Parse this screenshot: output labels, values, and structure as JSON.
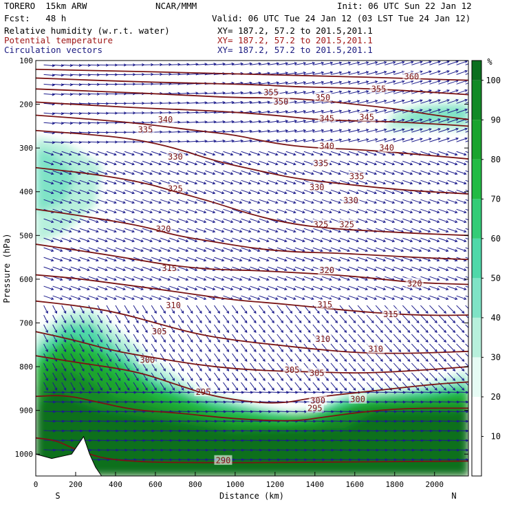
{
  "header": {
    "model_name": "TORERO  15km ARW",
    "org": "NCAR/MMM",
    "init": "Init: 06 UTC Sun 22 Jan 12",
    "fcst": "Fcst:   48 h",
    "valid": "Valid: 06 UTC Tue 24 Jan 12 (03 LST Tue 24 Jan 12)",
    "fields": [
      {
        "name": "Relative humidity (w.r.t. water)",
        "xy": "XY= 187.2, 57.2 to 201.5,201.1"
      },
      {
        "name": "Potential temperature",
        "xy": "XY= 187.2, 57.2 to 201.5,201.1"
      },
      {
        "name": "Circulation vectors",
        "xy": "XY= 187.2, 57.2 to 201.5,201.1"
      }
    ]
  },
  "colors": {
    "theta": "#7a1414",
    "vectors": "#1c1c8c",
    "rh_scale": [
      "#ffffff",
      "#ffffff",
      "#e6fbf4",
      "#b7f0dc",
      "#7fe3c6",
      "#4fd8a9",
      "#33cc77",
      "#22bb44",
      "#1aa42e",
      "#128a26",
      "#0b6f1f"
    ]
  },
  "chart_data": {
    "type": "cross-section",
    "xlabel": "Distance (km)",
    "ylabel": "Pressure (hPa)",
    "xlim": [
      0,
      2170
    ],
    "ylim": [
      1050,
      100
    ],
    "x_ticks": [
      0,
      200,
      400,
      600,
      800,
      1000,
      1200,
      1400,
      1600,
      1800,
      2000
    ],
    "y_ticks": [
      100,
      200,
      300,
      400,
      500,
      600,
      700,
      800,
      900,
      1000
    ],
    "left_end": "S",
    "right_end": "N",
    "colorbar": {
      "unit": "%",
      "ticks": [
        10,
        20,
        30,
        40,
        50,
        60,
        70,
        80,
        90,
        100
      ],
      "bounds": [
        0,
        105
      ]
    },
    "theta_contours": [
      {
        "value": 290,
        "points": [
          [
            0,
            963
          ],
          [
            100,
            968
          ],
          [
            200,
            990
          ],
          [
            400,
            1018
          ],
          [
            1000,
            1020
          ],
          [
            1500,
            1018
          ],
          [
            2170,
            1016
          ]
        ],
        "labels": [
          [
            940,
            1015
          ]
        ]
      },
      {
        "value": 295,
        "points": [
          [
            0,
            868
          ],
          [
            150,
            865
          ],
          [
            300,
            880
          ],
          [
            500,
            900
          ],
          [
            700,
            905
          ],
          [
            1000,
            920
          ],
          [
            1300,
            925
          ],
          [
            1450,
            915
          ],
          [
            1700,
            900
          ],
          [
            1900,
            895
          ],
          [
            2170,
            895
          ]
        ],
        "labels": [
          [
            840,
            858
          ],
          [
            1400,
            895
          ]
        ]
      },
      {
        "value": 300,
        "points": [
          [
            0,
            775
          ],
          [
            200,
            790
          ],
          [
            500,
            810
          ],
          [
            700,
            840
          ],
          [
            900,
            870
          ],
          [
            1200,
            887
          ],
          [
            1400,
            870
          ],
          [
            1600,
            860
          ],
          [
            1800,
            850
          ],
          [
            2000,
            840
          ],
          [
            2170,
            835
          ]
        ],
        "labels": [
          [
            560,
            785
          ],
          [
            1415,
            878
          ],
          [
            1615,
            875
          ]
        ]
      },
      {
        "value": 305,
        "points": [
          [
            0,
            720
          ],
          [
            200,
            740
          ],
          [
            400,
            765
          ],
          [
            600,
            780
          ],
          [
            800,
            795
          ],
          [
            1000,
            805
          ],
          [
            1200,
            810
          ],
          [
            1400,
            812
          ],
          [
            1600,
            815
          ],
          [
            1800,
            812
          ],
          [
            2000,
            806
          ],
          [
            2170,
            800
          ]
        ],
        "labels": [
          [
            620,
            720
          ],
          [
            1285,
            808
          ],
          [
            1410,
            815
          ]
        ]
      },
      {
        "value": 310,
        "points": [
          [
            0,
            650
          ],
          [
            200,
            660
          ],
          [
            400,
            675
          ],
          [
            600,
            700
          ],
          [
            800,
            725
          ],
          [
            1000,
            740
          ],
          [
            1200,
            750
          ],
          [
            1400,
            760
          ],
          [
            1600,
            768
          ],
          [
            1800,
            770
          ],
          [
            2000,
            768
          ],
          [
            2170,
            765
          ]
        ],
        "labels": [
          [
            690,
            660
          ],
          [
            1440,
            737
          ],
          [
            1705,
            760
          ]
        ]
      },
      {
        "value": 315,
        "points": [
          [
            0,
            590
          ],
          [
            200,
            598
          ],
          [
            400,
            610
          ],
          [
            600,
            622
          ],
          [
            800,
            635
          ],
          [
            1000,
            648
          ],
          [
            1200,
            655
          ],
          [
            1400,
            664
          ],
          [
            1600,
            673
          ],
          [
            1800,
            680
          ],
          [
            2000,
            683
          ],
          [
            2170,
            682
          ]
        ],
        "labels": [
          [
            670,
            575
          ],
          [
            1450,
            658
          ],
          [
            1780,
            680
          ]
        ]
      },
      {
        "value": 320,
        "points": [
          [
            0,
            520
          ],
          [
            300,
            540
          ],
          [
            500,
            555
          ],
          [
            700,
            570
          ],
          [
            900,
            578
          ],
          [
            1100,
            580
          ],
          [
            1300,
            585
          ],
          [
            1500,
            590
          ],
          [
            1700,
            598
          ],
          [
            1900,
            608
          ],
          [
            2170,
            612
          ]
        ],
        "labels": [
          [
            640,
            485
          ],
          [
            1460,
            580
          ],
          [
            1900,
            610
          ]
        ]
      },
      {
        "value": 325,
        "points": [
          [
            0,
            440
          ],
          [
            300,
            460
          ],
          [
            550,
            480
          ],
          [
            700,
            500
          ],
          [
            900,
            515
          ],
          [
            1100,
            530
          ],
          [
            1300,
            538
          ],
          [
            1500,
            540
          ],
          [
            1700,
            545
          ],
          [
            1900,
            550
          ],
          [
            2170,
            555
          ]
        ],
        "labels": [
          [
            700,
            393
          ],
          [
            1430,
            475
          ],
          [
            1560,
            475
          ]
        ]
      },
      {
        "value": 330,
        "points": [
          [
            0,
            345
          ],
          [
            300,
            360
          ],
          [
            550,
            380
          ],
          [
            700,
            400
          ],
          [
            900,
            425
          ],
          [
            1100,
            455
          ],
          [
            1300,
            475
          ],
          [
            1500,
            485
          ],
          [
            1700,
            490
          ],
          [
            1900,
            495
          ],
          [
            2170,
            500
          ]
        ],
        "labels": [
          [
            700,
            320
          ],
          [
            1410,
            390
          ],
          [
            1580,
            420
          ]
        ]
      },
      {
        "value": 335,
        "points": [
          [
            0,
            260
          ],
          [
            300,
            270
          ],
          [
            500,
            280
          ],
          [
            700,
            300
          ],
          [
            900,
            330
          ],
          [
            1100,
            350
          ],
          [
            1300,
            370
          ],
          [
            1500,
            380
          ],
          [
            1700,
            390
          ],
          [
            1900,
            398
          ],
          [
            2170,
            405
          ]
        ],
        "labels": [
          [
            550,
            258
          ],
          [
            1430,
            335
          ],
          [
            1610,
            365
          ]
        ]
      },
      {
        "value": 340,
        "points": [
          [
            0,
            225
          ],
          [
            300,
            235
          ],
          [
            550,
            245
          ],
          [
            800,
            260
          ],
          [
            1000,
            270
          ],
          [
            1200,
            290
          ],
          [
            1400,
            300
          ],
          [
            1600,
            303
          ],
          [
            1800,
            310
          ],
          [
            2000,
            318
          ],
          [
            2170,
            325
          ]
        ],
        "labels": [
          [
            650,
            235
          ],
          [
            1460,
            296
          ],
          [
            1760,
            300
          ]
        ]
      },
      {
        "value": 345,
        "points": [
          [
            0,
            195
          ],
          [
            300,
            203
          ],
          [
            600,
            210
          ],
          [
            900,
            215
          ],
          [
            1200,
            225
          ],
          [
            1400,
            235
          ],
          [
            1600,
            238
          ],
          [
            1800,
            240
          ],
          [
            2000,
            245
          ],
          [
            2170,
            250
          ]
        ],
        "labels": [
          [
            1460,
            233
          ],
          [
            1660,
            230
          ]
        ]
      },
      {
        "value": 350,
        "points": [
          [
            0,
            165
          ],
          [
            400,
            172
          ],
          [
            700,
            178
          ],
          [
            1000,
            185
          ],
          [
            1200,
            185
          ],
          [
            1400,
            190
          ],
          [
            1600,
            200
          ],
          [
            1800,
            210
          ],
          [
            2000,
            225
          ],
          [
            2170,
            235
          ]
        ],
        "labels": [
          [
            1230,
            194
          ],
          [
            1440,
            185
          ]
        ]
      },
      {
        "value": 355,
        "points": [
          [
            0,
            140
          ],
          [
            400,
            147
          ],
          [
            800,
            152
          ],
          [
            1100,
            155
          ],
          [
            1300,
            160
          ],
          [
            1500,
            162
          ],
          [
            1700,
            165
          ],
          [
            1900,
            170
          ],
          [
            2170,
            178
          ]
        ],
        "labels": [
          [
            1180,
            173
          ],
          [
            1720,
            165
          ]
        ]
      },
      {
        "value": 360,
        "points": [
          [
            0,
            120
          ],
          [
            400,
            124
          ],
          [
            800,
            128
          ],
          [
            1200,
            133
          ],
          [
            1500,
            136
          ],
          [
            1800,
            140
          ],
          [
            2000,
            143
          ],
          [
            2170,
            145
          ]
        ],
        "labels": [
          [
            1885,
            137
          ]
        ]
      }
    ]
  }
}
